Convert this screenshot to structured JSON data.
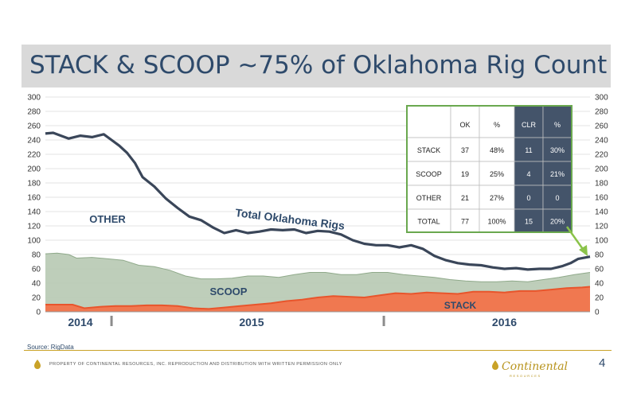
{
  "slide": {
    "title": "STACK & SCOOP ~75% of Oklahoma Rig Count",
    "source": "Source: RigData",
    "footer": "PROPERTY OF CONTINENTAL RESOURCES, INC. REPRODUCTION AND DISTRIBUTION WITH WRITTEN PERMISSION ONLY",
    "logo_name": "Continental",
    "logo_sub": "RESOURCES",
    "page_number": "4"
  },
  "colors": {
    "title_bar": "#d9d9d9",
    "title_text": "#2e4a6b",
    "stack": "#f07850",
    "scoop": "#b7c9b3",
    "total_line": "#3a4659",
    "table_dark": "#44546a",
    "table_border": "#6aa84f",
    "gold": "#c9a227"
  },
  "chart_data": {
    "type": "area",
    "x_unit": "week index (Jan 2014 – Sep 2016)",
    "x_range": [
      0,
      140
    ],
    "year_labels": [
      {
        "label": "2014",
        "x": 9
      },
      {
        "label": "2015",
        "x": 53
      },
      {
        "label": "2016",
        "x": 118
      }
    ],
    "year_dividers": [
      17,
      87
    ],
    "y_ticks": [
      0,
      20,
      40,
      60,
      80,
      100,
      120,
      140,
      160,
      180,
      200,
      220,
      240,
      260,
      280,
      300
    ],
    "ylim": [
      0,
      300
    ],
    "grid": true,
    "series": [
      {
        "name": "STACK",
        "kind": "area",
        "x": [
          0,
          4,
          7,
          10,
          14,
          18,
          22,
          26,
          30,
          34,
          38,
          42,
          46,
          50,
          54,
          58,
          62,
          66,
          70,
          74,
          78,
          82,
          86,
          90,
          94,
          98,
          102,
          106,
          110,
          114,
          118,
          122,
          126,
          130,
          134,
          138,
          140
        ],
        "values": [
          10,
          10,
          10,
          5,
          7,
          8,
          8,
          9,
          9,
          8,
          5,
          4,
          6,
          8,
          10,
          12,
          15,
          17,
          20,
          22,
          21,
          20,
          23,
          26,
          25,
          27,
          26,
          25,
          28,
          28,
          27,
          29,
          29,
          31,
          33,
          34,
          35
        ]
      },
      {
        "name": "SCOOP",
        "kind": "area",
        "x": [
          0,
          3,
          6,
          8,
          12,
          16,
          20,
          24,
          28,
          32,
          36,
          40,
          44,
          48,
          52,
          56,
          60,
          64,
          68,
          72,
          76,
          80,
          84,
          88,
          92,
          96,
          100,
          104,
          108,
          112,
          116,
          120,
          124,
          128,
          132,
          136,
          140
        ],
        "values": [
          81,
          82,
          80,
          75,
          76,
          74,
          72,
          65,
          63,
          58,
          50,
          46,
          46,
          47,
          50,
          50,
          48,
          52,
          55,
          55,
          52,
          52,
          55,
          55,
          52,
          50,
          48,
          45,
          43,
          42,
          42,
          43,
          42,
          45,
          48,
          52,
          55
        ]
      },
      {
        "name": "Total Oklahoma Rigs",
        "kind": "line",
        "x": [
          0,
          2,
          4,
          6,
          9,
          12,
          15,
          17,
          19,
          21,
          23,
          25,
          28,
          31,
          34,
          37,
          40,
          43,
          46,
          49,
          52,
          55,
          58,
          61,
          64,
          67,
          70,
          73,
          76,
          79,
          82,
          85,
          88,
          91,
          94,
          97,
          100,
          103,
          106,
          109,
          112,
          115,
          118,
          121,
          124,
          127,
          130,
          133,
          135,
          137,
          140
        ],
        "values": [
          249,
          250,
          246,
          242,
          246,
          244,
          248,
          240,
          232,
          222,
          208,
          188,
          175,
          158,
          145,
          133,
          128,
          118,
          110,
          114,
          110,
          112,
          115,
          114,
          115,
          110,
          113,
          112,
          108,
          100,
          95,
          93,
          93,
          90,
          93,
          88,
          78,
          72,
          68,
          66,
          65,
          62,
          60,
          61,
          59,
          60,
          60,
          64,
          68,
          74,
          77
        ]
      }
    ],
    "annotations": [
      "OTHER",
      "SCOOP",
      "STACK",
      "Total Oklahoma Rigs"
    ]
  },
  "table": {
    "headers": [
      "",
      "OK",
      "%",
      "CLR",
      "%"
    ],
    "rows": [
      [
        "STACK",
        "37",
        "48%",
        "11",
        "30%"
      ],
      [
        "SCOOP",
        "19",
        "25%",
        "4",
        "21%"
      ],
      [
        "OTHER",
        "21",
        "27%",
        "0",
        "0"
      ],
      [
        "TOTAL",
        "77",
        "100%",
        "15",
        "20%"
      ]
    ]
  }
}
